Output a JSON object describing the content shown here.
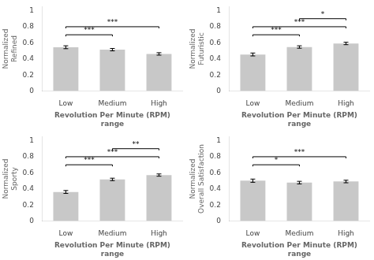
{
  "chart_data": [
    {
      "type": "bar",
      "ylabel": "Normalized\nRefined",
      "xlabel": "Revolution Per Minute (RPM)\nrange",
      "categories": [
        "Low",
        "Medium",
        "High"
      ],
      "values": [
        0.545,
        0.515,
        0.462
      ],
      "errors": [
        0.018,
        0.015,
        0.015
      ],
      "color": "#c8c8c8",
      "ylim": [
        0,
        1.05
      ],
      "yticks": [
        0,
        0.2,
        0.4,
        0.6,
        0.8,
        1
      ],
      "grid": false,
      "bracket_height": 0.02,
      "significance": [
        {
          "from": "Low",
          "to": "Medium",
          "y": 0.68,
          "label": "***"
        },
        {
          "from": "Low",
          "to": "High",
          "y": 0.78,
          "label": "***"
        }
      ]
    },
    {
      "type": "bar",
      "ylabel": "Normalized\nFuturistic",
      "xlabel": "Revolution Per Minute (RPM)\nrange",
      "categories": [
        "Low",
        "Medium",
        "High"
      ],
      "values": [
        0.455,
        0.548,
        0.592
      ],
      "errors": [
        0.018,
        0.015,
        0.015
      ],
      "color": "#c8c8c8",
      "ylim": [
        0,
        1.05
      ],
      "yticks": [
        0,
        0.2,
        0.4,
        0.6,
        0.8,
        1
      ],
      "grid": false,
      "bracket_height": 0.02,
      "significance": [
        {
          "from": "Low",
          "to": "Medium",
          "y": 0.68,
          "label": "***"
        },
        {
          "from": "Low",
          "to": "High",
          "y": 0.78,
          "label": "***"
        },
        {
          "from": "Medium",
          "to": "High",
          "y": 0.88,
          "label": "*"
        }
      ]
    },
    {
      "type": "bar",
      "ylabel": "Normalized\nSporty",
      "xlabel": "Revolution Per Minute (RPM)\nrange",
      "categories": [
        "Low",
        "Medium",
        "High"
      ],
      "values": [
        0.362,
        0.518,
        0.572
      ],
      "errors": [
        0.018,
        0.015,
        0.014
      ],
      "color": "#c8c8c8",
      "ylim": [
        0,
        1.05
      ],
      "yticks": [
        0,
        0.2,
        0.4,
        0.6,
        0.8,
        1
      ],
      "grid": false,
      "bracket_height": 0.02,
      "significance": [
        {
          "from": "Low",
          "to": "Medium",
          "y": 0.68,
          "label": "***"
        },
        {
          "from": "Low",
          "to": "High",
          "y": 0.78,
          "label": "***"
        },
        {
          "from": "Medium",
          "to": "High",
          "y": 0.88,
          "label": "**"
        }
      ]
    },
    {
      "type": "bar",
      "ylabel": "Normalized\nOverall Satisfaction",
      "xlabel": "Revolution Per Minute (RPM)\nrange",
      "categories": [
        "Low",
        "Medium",
        "High"
      ],
      "values": [
        0.502,
        0.478,
        0.492
      ],
      "errors": [
        0.02,
        0.016,
        0.016
      ],
      "color": "#c8c8c8",
      "ylim": [
        0,
        1.05
      ],
      "yticks": [
        0,
        0.2,
        0.4,
        0.6,
        0.8,
        1
      ],
      "grid": false,
      "bracket_height": 0.02,
      "significance": [
        {
          "from": "Low",
          "to": "Medium",
          "y": 0.68,
          "label": "*"
        },
        {
          "from": "Low",
          "to": "High",
          "y": 0.78,
          "label": "***"
        }
      ]
    }
  ]
}
